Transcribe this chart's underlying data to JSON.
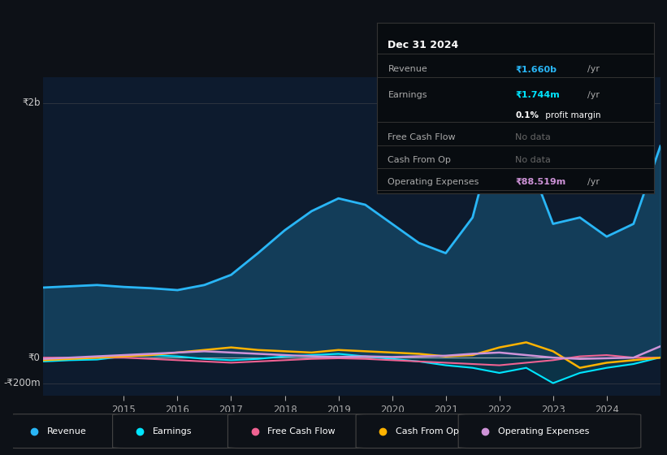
{
  "bg_color": "#0d1117",
  "chart_bg": "#0d1b2e",
  "y2b_label": "₹2b",
  "y0_label": "₹0",
  "yn200_label": "-₹200m",
  "years": [
    2013.5,
    2014,
    2014.5,
    2015,
    2015.5,
    2016,
    2016.5,
    2017,
    2017.5,
    2018,
    2018.5,
    2019,
    2019.5,
    2020,
    2020.5,
    2021,
    2021.5,
    2022,
    2022.5,
    2023,
    2023.5,
    2024,
    2024.5,
    2025.0
  ],
  "revenue": [
    550,
    560,
    570,
    555,
    545,
    530,
    570,
    650,
    820,
    1000,
    1150,
    1250,
    1200,
    1050,
    900,
    820,
    1100,
    1900,
    1600,
    1050,
    1100,
    950,
    1050,
    1660
  ],
  "earnings": [
    -30,
    -20,
    -15,
    10,
    20,
    10,
    -10,
    -20,
    -10,
    10,
    20,
    30,
    10,
    -10,
    -30,
    -60,
    -80,
    -120,
    -80,
    -200,
    -120,
    -80,
    -50,
    1.744
  ],
  "free_cash_flow": [
    0,
    0,
    0,
    0,
    -10,
    -20,
    -30,
    -40,
    -30,
    -20,
    -10,
    -5,
    -10,
    -20,
    -30,
    -40,
    -50,
    -60,
    -40,
    -20,
    10,
    20,
    0,
    0
  ],
  "cash_from_op": [
    -20,
    -10,
    0,
    10,
    20,
    40,
    60,
    80,
    60,
    50,
    40,
    60,
    50,
    40,
    30,
    10,
    20,
    80,
    120,
    50,
    -80,
    -40,
    -20,
    0
  ],
  "op_expenses": [
    -10,
    0,
    10,
    20,
    30,
    40,
    50,
    40,
    30,
    20,
    10,
    5,
    10,
    5,
    10,
    15,
    30,
    40,
    20,
    0,
    -10,
    -5,
    0,
    88.519
  ],
  "revenue_color": "#29b6f6",
  "earnings_color": "#00e5ff",
  "fcf_color": "#f06292",
  "cash_op_color": "#ffb300",
  "op_exp_color": "#ce93d8",
  "legend_items": [
    "Revenue",
    "Earnings",
    "Free Cash Flow",
    "Cash From Op",
    "Operating Expenses"
  ],
  "legend_colors": [
    "#29b6f6",
    "#00e5ff",
    "#f06292",
    "#ffb300",
    "#ce93d8"
  ],
  "tooltip_date": "Dec 31 2024",
  "tooltip_revenue": "₹1.660b",
  "tooltip_earnings": "₹1.744m",
  "tooltip_margin": "0.1%",
  "tooltip_fcf": "No data",
  "tooltip_cash_op": "No data",
  "tooltip_op_exp": "₹88.519m",
  "ylim_top": 2200,
  "ylim_bottom": -300,
  "y2b_val": 2000,
  "y0_val": 0,
  "yn200_val": -200,
  "xmin": 2013.5,
  "xmax": 2025.0,
  "xticks": [
    2015,
    2016,
    2017,
    2018,
    2019,
    2020,
    2021,
    2022,
    2023,
    2024
  ]
}
